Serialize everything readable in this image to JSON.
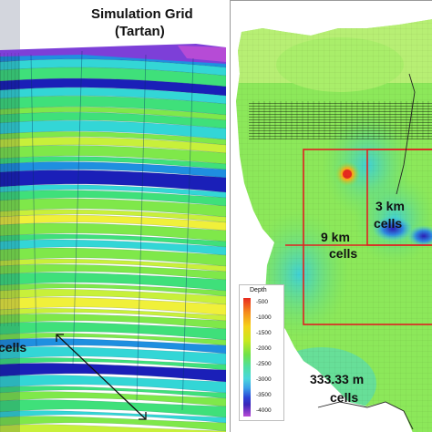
{
  "left_panel": {
    "title_line1": "Simulation Grid",
    "title_line2": "(Tartan)",
    "cells_label_left": "cells",
    "resolution_value": "333.33 m",
    "resolution_unit": "cells"
  },
  "right_panel": {
    "region_3km_value": "3 km",
    "region_3km_unit": "cells",
    "region_9km_value": "9 km",
    "region_9km_unit": "cells",
    "legend": {
      "title": "Depth",
      "ticks": [
        "-500",
        "-1000",
        "-1500",
        "-2000",
        "-2500",
        "-3000",
        "-3500",
        "-4000"
      ]
    }
  },
  "colors": {
    "refinement_box": "#e02020",
    "layer_palette": [
      "#1a1fb8",
      "#1f8fe0",
      "#33d6d6",
      "#3fe07a",
      "#7fe84a",
      "#c8f03a",
      "#f0f03a"
    ]
  }
}
